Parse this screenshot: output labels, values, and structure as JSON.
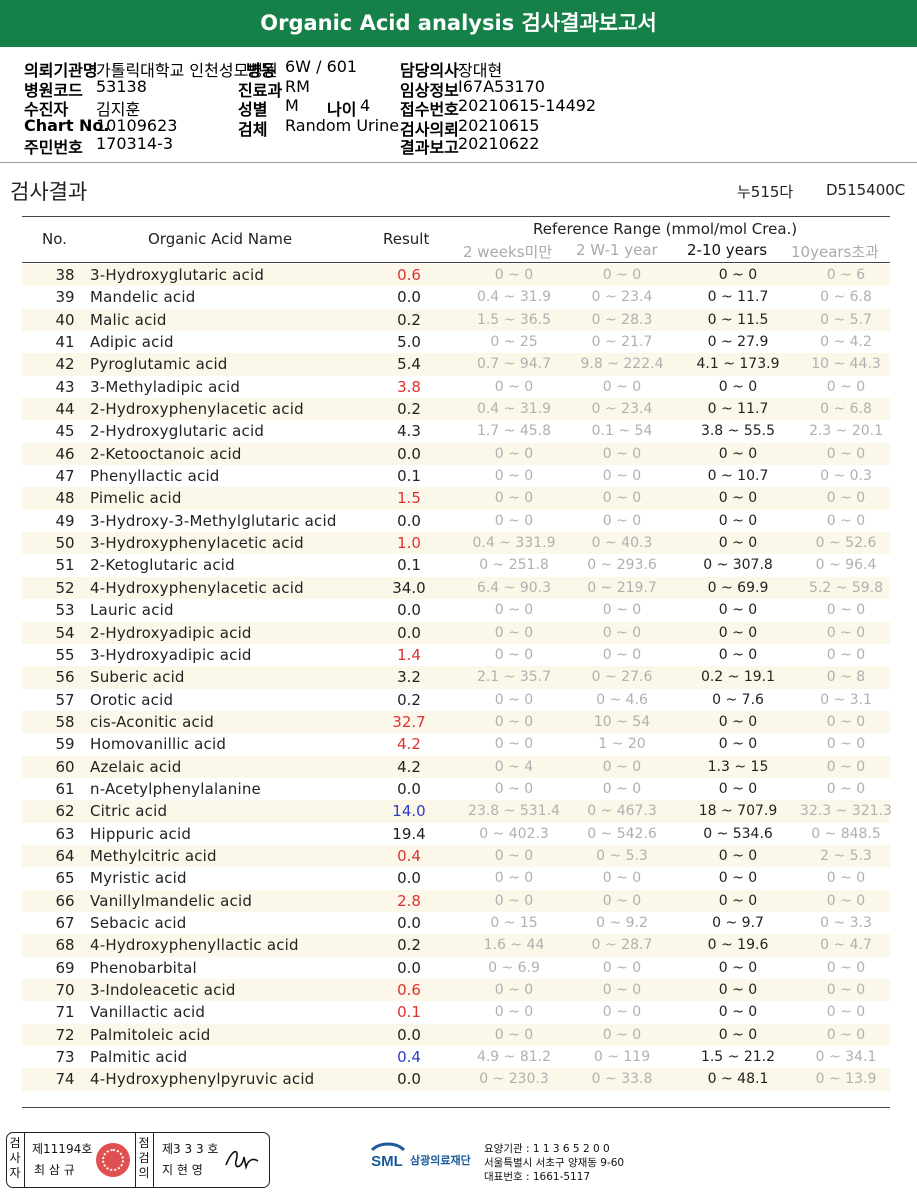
{
  "report": {
    "title": "Organic Acid analysis 검사결과보고서"
  },
  "patient": {
    "institution_label": "의뢰기관명",
    "institution_value": "가톨릭대학교 인천성모병원",
    "ward_label": "병동",
    "ward_value": "6W / 601",
    "doctor_label": "담당의사",
    "doctor_value": "장대현",
    "hospital_code_label": "병원코드",
    "hospital_code_value": "53138",
    "dept_label": "진료과",
    "dept_value": "RM",
    "clinical_label": "임상정보",
    "clinical_value": "I67A53170",
    "examinee_label": "수진자",
    "examinee_value": "김지훈",
    "sex_label": "성별",
    "sex_value": "M",
    "age_label": "나이",
    "age_value": "4",
    "receipt_label": "접수번호",
    "receipt_value": "20210615-14492",
    "chart_label": "Chart No.",
    "chart_value": "10109623",
    "specimen_label": "검체",
    "specimen_value": "Random Urine",
    "request_label": "검사의뢰",
    "request_value": "20210615",
    "resident_label": "주민번호",
    "resident_value": "170314-3",
    "report_label": "결과보고",
    "report_value": "20210622"
  },
  "section": {
    "title": "검사결과",
    "code1": "누515다",
    "code2": "D515400C"
  },
  "table": {
    "col_no": "No.",
    "col_name": "Organic Acid Name",
    "col_result": "Result",
    "ref_header": "Reference Range (mmol/mol Crea.)",
    "ref_cols": [
      "2 weeks미만",
      "2 W-1 year",
      "2-10 years",
      "10years초과"
    ],
    "active_ref_index": 2,
    "colors": {
      "normal": "#222222",
      "high": "#e03030",
      "low": "#2e3cc8"
    },
    "rows": [
      {
        "no": "38",
        "name": "3-Hydroxyglutaric acid",
        "result": "0.6",
        "flag": "high",
        "r": [
          "0 ~ 0",
          "0 ~ 0",
          "0 ~ 0",
          "0 ~ 6"
        ]
      },
      {
        "no": "39",
        "name": "Mandelic acid",
        "result": "0.0",
        "flag": "normal",
        "r": [
          "0.4 ~ 31.9",
          "0 ~ 23.4",
          "0 ~ 11.7",
          "0 ~ 6.8"
        ]
      },
      {
        "no": "40",
        "name": "Malic acid",
        "result": "0.2",
        "flag": "normal",
        "r": [
          "1.5 ~ 36.5",
          "0 ~ 28.3",
          "0 ~ 11.5",
          "0 ~ 5.7"
        ]
      },
      {
        "no": "41",
        "name": "Adipic acid",
        "result": "5.0",
        "flag": "normal",
        "r": [
          "0 ~ 25",
          "0 ~ 21.7",
          "0 ~ 27.9",
          "0 ~ 4.2"
        ]
      },
      {
        "no": "42",
        "name": "Pyroglutamic acid",
        "result": "5.4",
        "flag": "normal",
        "r": [
          "0.7 ~ 94.7",
          "9.8 ~ 222.4",
          "4.1 ~ 173.9",
          "10 ~ 44.3"
        ]
      },
      {
        "no": "43",
        "name": "3-Methyladipic acid",
        "result": "3.8",
        "flag": "high",
        "r": [
          "0 ~ 0",
          "0 ~ 0",
          "0 ~ 0",
          "0 ~ 0"
        ]
      },
      {
        "no": "44",
        "name": "2-Hydroxyphenylacetic acid",
        "result": "0.2",
        "flag": "normal",
        "r": [
          "0.4 ~ 31.9",
          "0 ~ 23.4",
          "0 ~ 11.7",
          "0 ~ 6.8"
        ]
      },
      {
        "no": "45",
        "name": "2-Hydroxyglutaric acid",
        "result": "4.3",
        "flag": "normal",
        "r": [
          "1.7 ~ 45.8",
          "0.1 ~ 54",
          "3.8 ~ 55.5",
          "2.3 ~ 20.1"
        ]
      },
      {
        "no": "46",
        "name": "2-Ketooctanoic acid",
        "result": "0.0",
        "flag": "normal",
        "r": [
          "0 ~ 0",
          "0 ~ 0",
          "0 ~ 0",
          "0 ~ 0"
        ]
      },
      {
        "no": "47",
        "name": "Phenyllactic acid",
        "result": "0.1",
        "flag": "normal",
        "r": [
          "0 ~ 0",
          "0 ~ 0",
          "0 ~ 10.7",
          "0 ~ 0.3"
        ]
      },
      {
        "no": "48",
        "name": "Pimelic acid",
        "result": "1.5",
        "flag": "high",
        "r": [
          "0 ~ 0",
          "0 ~ 0",
          "0 ~ 0",
          "0 ~ 0"
        ]
      },
      {
        "no": "49",
        "name": "3-Hydroxy-3-Methylglutaric acid",
        "result": "0.0",
        "flag": "normal",
        "r": [
          "0 ~ 0",
          "0 ~ 0",
          "0 ~ 0",
          "0 ~ 0"
        ]
      },
      {
        "no": "50",
        "name": "3-Hydroxyphenylacetic acid",
        "result": "1.0",
        "flag": "high",
        "r": [
          "0.4 ~ 331.9",
          "0 ~ 40.3",
          "0 ~ 0",
          "0 ~ 52.6"
        ]
      },
      {
        "no": "51",
        "name": "2-Ketoglutaric acid",
        "result": "0.1",
        "flag": "normal",
        "r": [
          "0 ~ 251.8",
          "0 ~ 293.6",
          "0 ~ 307.8",
          "0 ~ 96.4"
        ]
      },
      {
        "no": "52",
        "name": "4-Hydroxyphenylacetic acid",
        "result": "34.0",
        "flag": "normal",
        "r": [
          "6.4 ~ 90.3",
          "0 ~ 219.7",
          "0 ~ 69.9",
          "5.2 ~ 59.8"
        ]
      },
      {
        "no": "53",
        "name": "Lauric acid",
        "result": "0.0",
        "flag": "normal",
        "r": [
          "0 ~ 0",
          "0 ~ 0",
          "0 ~ 0",
          "0 ~ 0"
        ]
      },
      {
        "no": "54",
        "name": "2-Hydroxyadipic acid",
        "result": "0.0",
        "flag": "normal",
        "r": [
          "0 ~ 0",
          "0 ~ 0",
          "0 ~ 0",
          "0 ~ 0"
        ]
      },
      {
        "no": "55",
        "name": "3-Hydroxyadipic acid",
        "result": "1.4",
        "flag": "high",
        "r": [
          "0 ~ 0",
          "0 ~ 0",
          "0 ~ 0",
          "0 ~ 0"
        ]
      },
      {
        "no": "56",
        "name": "Suberic acid",
        "result": "3.2",
        "flag": "normal",
        "r": [
          "2.1 ~ 35.7",
          "0 ~ 27.6",
          "0.2 ~ 19.1",
          "0 ~ 8"
        ]
      },
      {
        "no": "57",
        "name": "Orotic acid",
        "result": "0.2",
        "flag": "normal",
        "r": [
          "0 ~ 0",
          "0 ~ 4.6",
          "0 ~ 7.6",
          "0 ~ 3.1"
        ]
      },
      {
        "no": "58",
        "name": "cis-Aconitic acid",
        "result": "32.7",
        "flag": "high",
        "r": [
          "0 ~ 0",
          "10 ~ 54",
          "0 ~ 0",
          "0 ~ 0"
        ]
      },
      {
        "no": "59",
        "name": "Homovanillic acid",
        "result": "4.2",
        "flag": "high",
        "r": [
          "0 ~ 0",
          "1 ~ 20",
          "0 ~ 0",
          "0 ~ 0"
        ]
      },
      {
        "no": "60",
        "name": "Azelaic acid",
        "result": "4.2",
        "flag": "normal",
        "r": [
          "0 ~ 4",
          "0 ~ 0",
          "1.3 ~ 15",
          "0 ~ 0"
        ]
      },
      {
        "no": "61",
        "name": "n-Acetylphenylalanine",
        "result": "0.0",
        "flag": "normal",
        "r": [
          "0 ~ 0",
          "0 ~ 0",
          "0 ~ 0",
          "0 ~ 0"
        ]
      },
      {
        "no": "62",
        "name": "Citric acid",
        "result": "14.0",
        "flag": "low",
        "r": [
          "23.8 ~ 531.4",
          "0 ~ 467.3",
          "18 ~ 707.9",
          "32.3 ~ 321.3"
        ]
      },
      {
        "no": "63",
        "name": "Hippuric acid",
        "result": "19.4",
        "flag": "normal",
        "r": [
          "0 ~ 402.3",
          "0 ~ 542.6",
          "0 ~ 534.6",
          "0 ~ 848.5"
        ]
      },
      {
        "no": "64",
        "name": "Methylcitric acid",
        "result": "0.4",
        "flag": "high",
        "r": [
          "0 ~ 0",
          "0 ~ 5.3",
          "0 ~ 0",
          "2 ~ 5.3"
        ]
      },
      {
        "no": "65",
        "name": "Myristic acid",
        "result": "0.0",
        "flag": "normal",
        "r": [
          "0 ~ 0",
          "0 ~ 0",
          "0 ~ 0",
          "0 ~ 0"
        ]
      },
      {
        "no": "66",
        "name": "Vanillylmandelic acid",
        "result": "2.8",
        "flag": "high",
        "r": [
          "0 ~ 0",
          "0 ~ 0",
          "0 ~ 0",
          "0 ~ 0"
        ]
      },
      {
        "no": "67",
        "name": "Sebacic acid",
        "result": "0.0",
        "flag": "normal",
        "r": [
          "0 ~ 15",
          "0 ~ 9.2",
          "0 ~ 9.7",
          "0 ~ 3.3"
        ]
      },
      {
        "no": "68",
        "name": "4-Hydroxyphenyllactic acid",
        "result": "0.2",
        "flag": "normal",
        "r": [
          "1.6 ~ 44",
          "0 ~ 28.7",
          "0 ~ 19.6",
          "0 ~ 4.7"
        ]
      },
      {
        "no": "69",
        "name": "Phenobarbital",
        "result": "0.0",
        "flag": "normal",
        "r": [
          "0 ~ 6.9",
          "0 ~ 0",
          "0 ~ 0",
          "0 ~ 0"
        ]
      },
      {
        "no": "70",
        "name": "3-Indoleacetic acid",
        "result": "0.6",
        "flag": "high",
        "r": [
          "0 ~ 0",
          "0 ~ 0",
          "0 ~ 0",
          "0 ~ 0"
        ]
      },
      {
        "no": "71",
        "name": "Vanillactic acid",
        "result": "0.1",
        "flag": "high",
        "r": [
          "0 ~ 0",
          "0 ~ 0",
          "0 ~ 0",
          "0 ~ 0"
        ]
      },
      {
        "no": "72",
        "name": "Palmitoleic acid",
        "result": "0.0",
        "flag": "normal",
        "r": [
          "0 ~ 0",
          "0 ~ 0",
          "0 ~ 0",
          "0 ~ 0"
        ]
      },
      {
        "no": "73",
        "name": "Palmitic acid",
        "result": "0.4",
        "flag": "low",
        "r": [
          "4.9 ~ 81.2",
          "0 ~ 119",
          "1.5 ~ 21.2",
          "0 ~ 34.1"
        ]
      },
      {
        "no": "74",
        "name": "4-Hydroxyphenylpyruvic acid",
        "result": "0.0",
        "flag": "normal",
        "r": [
          "0 ~ 230.3",
          "0 ~ 33.8",
          "0 ~ 48.1",
          "0 ~ 13.9"
        ]
      }
    ]
  },
  "footer": {
    "inspector_label": "검사자",
    "inspector_license": "제11194호",
    "inspector_name": "최 삼 규",
    "reviewer_label": "점검의",
    "reviewer_license": "제3 3 3 호",
    "reviewer_name": "지 현 영",
    "org_logo_text": "SML",
    "org_name": "삼광의료재단",
    "org_code_line": "요양기관 : 1 1 3 6 5 2 0 0",
    "org_address": "서울특별시 서초구 양재동 9-60",
    "org_phone": "대표번호 : 1661-5117"
  }
}
